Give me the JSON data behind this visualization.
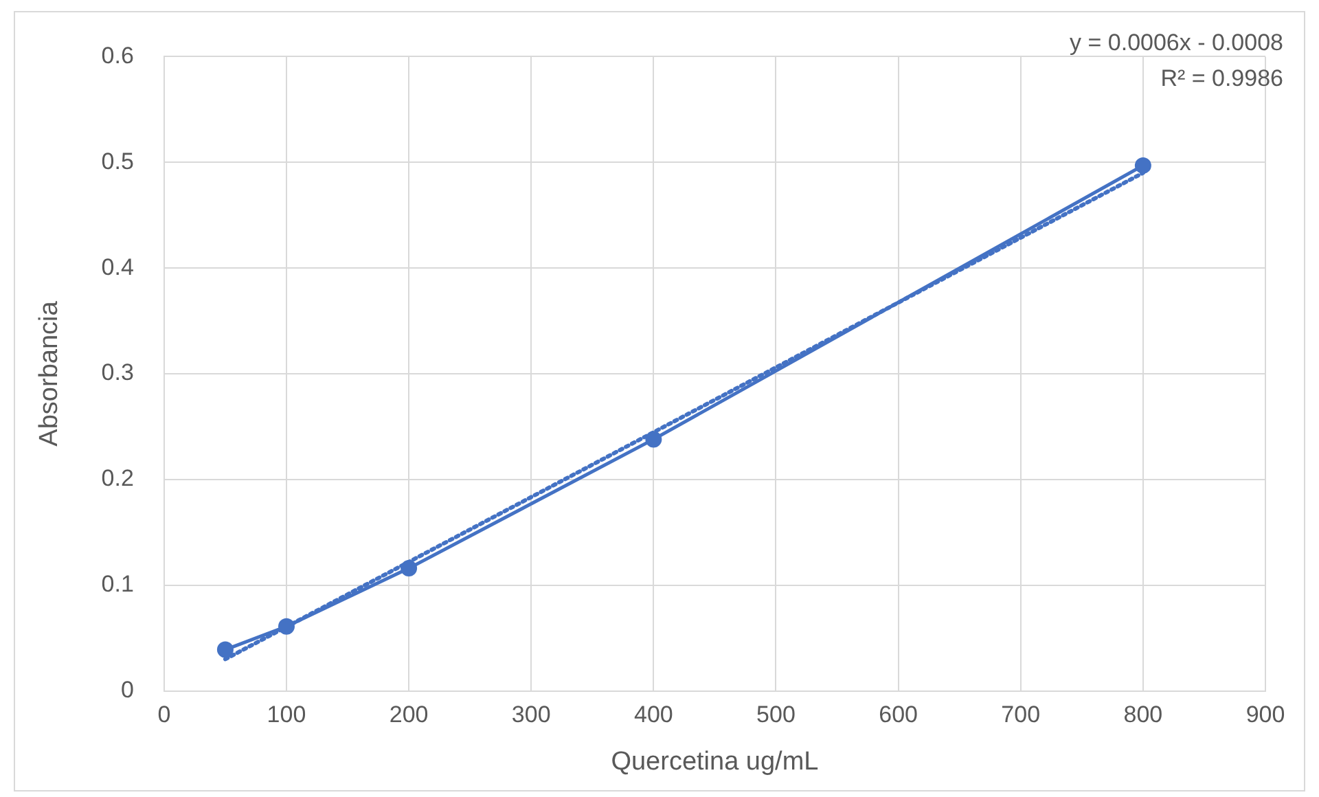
{
  "chart_data": {
    "type": "line",
    "xlabel": "Quercetina ug/mL",
    "ylabel": "Absorbancia",
    "series": [
      {
        "type": "line",
        "color": "#4472c4",
        "x": [
          50,
          100,
          200,
          400,
          800
        ],
        "values": [
          0.039,
          0.061,
          0.116,
          0.238,
          0.497
        ],
        "marker": "circle",
        "line_style": "solid"
      },
      {
        "type": "line",
        "color": "#4472c4",
        "x": [
          50,
          800
        ],
        "values": [
          0.03,
          0.49
        ],
        "marker": "none",
        "line_style": "dotted"
      }
    ],
    "xlim": [
      0,
      900
    ],
    "xticks": [
      0,
      100,
      200,
      300,
      400,
      500,
      600,
      700,
      800,
      900
    ],
    "ylim": [
      0,
      0.6
    ],
    "yticks": [
      0,
      0.1,
      0.2,
      0.3,
      0.4,
      0.5,
      0.6
    ],
    "grid": true,
    "annotations": [
      "y = 0.0006x - 0.0008",
      "R² = 0.9986"
    ]
  }
}
